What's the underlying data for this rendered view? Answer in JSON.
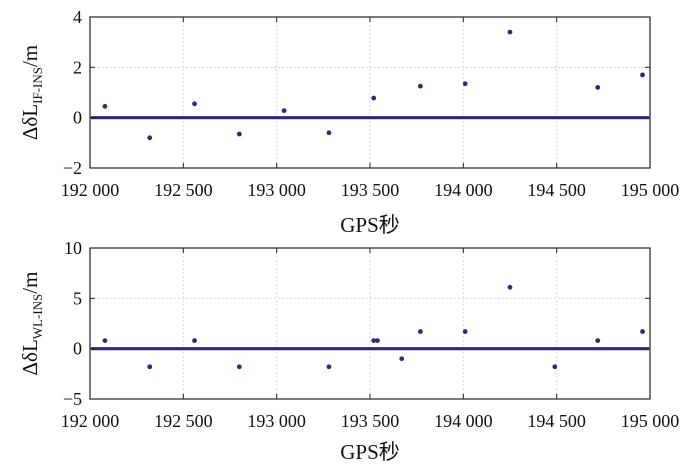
{
  "chart_data": [
    {
      "type": "scatter",
      "ylabel_main": "ΔδL",
      "ylabel_sub": "IF-INS",
      "ylabel_unit": "/m",
      "xlabel": "GPS秒",
      "xlim": [
        192000,
        195000
      ],
      "ylim": [
        -2,
        4
      ],
      "x_ticks": [
        192000,
        192500,
        193000,
        193500,
        194000,
        194500,
        195000
      ],
      "x_tick_labels": [
        "192 000",
        "192 500",
        "193 000",
        "193 500",
        "194 000",
        "194 500",
        "195 000"
      ],
      "y_ticks": [
        -2,
        0,
        2,
        4
      ],
      "y_tick_labels": [
        "−2",
        "0",
        "2",
        "4"
      ],
      "grid": true,
      "baseline": 0,
      "points": [
        {
          "x": 192080,
          "y": 0.45
        },
        {
          "x": 192320,
          "y": -0.8
        },
        {
          "x": 192560,
          "y": 0.55
        },
        {
          "x": 192800,
          "y": -0.65
        },
        {
          "x": 193040,
          "y": 0.28
        },
        {
          "x": 193280,
          "y": -0.6
        },
        {
          "x": 193520,
          "y": 0.78
        },
        {
          "x": 193770,
          "y": 1.25
        },
        {
          "x": 194010,
          "y": 1.35
        },
        {
          "x": 194250,
          "y": 3.4
        },
        {
          "x": 194720,
          "y": 1.2
        },
        {
          "x": 194960,
          "y": 1.7
        }
      ]
    },
    {
      "type": "scatter",
      "ylabel_main": "ΔδL",
      "ylabel_sub": "WL-INS",
      "ylabel_unit": "/m",
      "xlabel": "GPS秒",
      "xlim": [
        192000,
        195000
      ],
      "ylim": [
        -5,
        10
      ],
      "x_ticks": [
        192000,
        192500,
        193000,
        193500,
        194000,
        194500,
        195000
      ],
      "x_tick_labels": [
        "192 000",
        "192 500",
        "193 000",
        "193 500",
        "194 000",
        "194 500",
        "195 000"
      ],
      "y_ticks": [
        -5,
        0,
        5,
        10
      ],
      "y_tick_labels": [
        "−5",
        "0",
        "5",
        "10"
      ],
      "grid": true,
      "baseline": 0,
      "points": [
        {
          "x": 192080,
          "y": 0.8
        },
        {
          "x": 192320,
          "y": -1.8
        },
        {
          "x": 192560,
          "y": 0.8
        },
        {
          "x": 192800,
          "y": -1.8
        },
        {
          "x": 193280,
          "y": -1.8
        },
        {
          "x": 193520,
          "y": 0.8
        },
        {
          "x": 193540,
          "y": 0.8
        },
        {
          "x": 193770,
          "y": 1.7
        },
        {
          "x": 194010,
          "y": 1.7
        },
        {
          "x": 194250,
          "y": 6.1
        },
        {
          "x": 194490,
          "y": -1.8
        },
        {
          "x": 194720,
          "y": 0.8
        },
        {
          "x": 194960,
          "y": 1.7
        },
        {
          "x": 193670,
          "y": -1.0
        }
      ]
    }
  ]
}
